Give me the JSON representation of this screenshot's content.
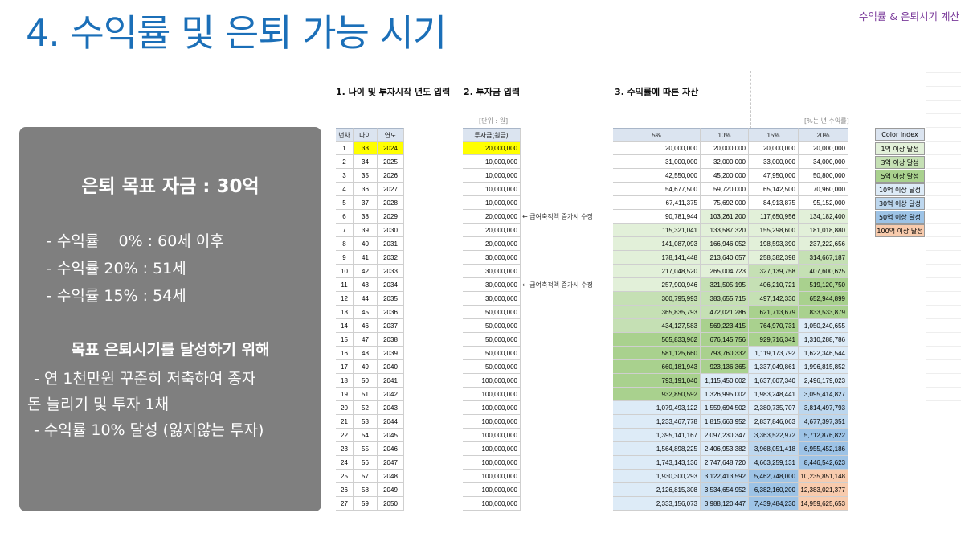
{
  "header_tag": "수익률 & 은퇴시기 계산",
  "page_title": "4. 수익률 및 은퇴 가능 시기",
  "summary": {
    "goal": "은퇴 목표 자금 : 30억",
    "line1": "- 수익률    0% : 60세 이후",
    "line2": "- 수익률 20% : 51세",
    "line3": "- 수익률 15% : 54세",
    "subheading": "목표 은퇴시기를 달성하기 위해",
    "line4": "- 연 1천만원 꾸준히 저축하여 종자",
    "line5": "돈 늘리기 및 투자 1채",
    "line6": "- 수익률 10% 달성 (잃지않는 투자)"
  },
  "sheet": {
    "section1": "1. 나이 및 투자시작 년도 입력",
    "section2": "2. 투자금 입력",
    "section3": "3. 수익률에 따른 자산",
    "unit_note": "[단위 : 원]",
    "rate_note": "[%는 년 수익률]",
    "headers": {
      "idx": "년차",
      "age": "나이",
      "year": "연도",
      "invest": "투자금(원금)",
      "r5": "5%",
      "r10": "10%",
      "r15": "15%",
      "r20": "20%"
    },
    "memo1": "← 급여축적액 증가시 수정",
    "memo2": "← 급여축적액 증가시 수정",
    "rows": [
      {
        "idx": "1",
        "age": "33",
        "year": "2024",
        "invest": "20,000,000",
        "r5": "20,000,000",
        "r10": "20,000,000",
        "r15": "20,000,000",
        "r20": "20,000,000"
      },
      {
        "idx": "2",
        "age": "34",
        "year": "2025",
        "invest": "10,000,000",
        "r5": "31,000,000",
        "r10": "32,000,000",
        "r15": "33,000,000",
        "r20": "34,000,000"
      },
      {
        "idx": "3",
        "age": "35",
        "year": "2026",
        "invest": "10,000,000",
        "r5": "42,550,000",
        "r10": "45,200,000",
        "r15": "47,950,000",
        "r20": "50,800,000"
      },
      {
        "idx": "4",
        "age": "36",
        "year": "2027",
        "invest": "10,000,000",
        "r5": "54,677,500",
        "r10": "59,720,000",
        "r15": "65,142,500",
        "r20": "70,960,000"
      },
      {
        "idx": "5",
        "age": "37",
        "year": "2028",
        "invest": "10,000,000",
        "r5": "67,411,375",
        "r10": "75,692,000",
        "r15": "84,913,875",
        "r20": "95,152,000"
      },
      {
        "idx": "6",
        "age": "38",
        "year": "2029",
        "invest": "20,000,000",
        "r5": "90,781,944",
        "r10": "103,261,200",
        "r15": "117,650,956",
        "r20": "134,182,400"
      },
      {
        "idx": "7",
        "age": "39",
        "year": "2030",
        "invest": "20,000,000",
        "r5": "115,321,041",
        "r10": "133,587,320",
        "r15": "155,298,600",
        "r20": "181,018,880"
      },
      {
        "idx": "8",
        "age": "40",
        "year": "2031",
        "invest": "20,000,000",
        "r5": "141,087,093",
        "r10": "166,946,052",
        "r15": "198,593,390",
        "r20": "237,222,656"
      },
      {
        "idx": "9",
        "age": "41",
        "year": "2032",
        "invest": "30,000,000",
        "r5": "178,141,448",
        "r10": "213,640,657",
        "r15": "258,382,398",
        "r20": "314,667,187"
      },
      {
        "idx": "10",
        "age": "42",
        "year": "2033",
        "invest": "30,000,000",
        "r5": "217,048,520",
        "r10": "265,004,723",
        "r15": "327,139,758",
        "r20": "407,600,625"
      },
      {
        "idx": "11",
        "age": "43",
        "year": "2034",
        "invest": "30,000,000",
        "r5": "257,900,946",
        "r10": "321,505,195",
        "r15": "406,210,721",
        "r20": "519,120,750"
      },
      {
        "idx": "12",
        "age": "44",
        "year": "2035",
        "invest": "30,000,000",
        "r5": "300,795,993",
        "r10": "383,655,715",
        "r15": "497,142,330",
        "r20": "652,944,899"
      },
      {
        "idx": "13",
        "age": "45",
        "year": "2036",
        "invest": "50,000,000",
        "r5": "365,835,793",
        "r10": "472,021,286",
        "r15": "621,713,679",
        "r20": "833,533,879"
      },
      {
        "idx": "14",
        "age": "46",
        "year": "2037",
        "invest": "50,000,000",
        "r5": "434,127,583",
        "r10": "569,223,415",
        "r15": "764,970,731",
        "r20": "1,050,240,655"
      },
      {
        "idx": "15",
        "age": "47",
        "year": "2038",
        "invest": "50,000,000",
        "r5": "505,833,962",
        "r10": "676,145,756",
        "r15": "929,716,341",
        "r20": "1,310,288,786"
      },
      {
        "idx": "16",
        "age": "48",
        "year": "2039",
        "invest": "50,000,000",
        "r5": "581,125,660",
        "r10": "793,760,332",
        "r15": "1,119,173,792",
        "r20": "1,622,346,544"
      },
      {
        "idx": "17",
        "age": "49",
        "year": "2040",
        "invest": "50,000,000",
        "r5": "660,181,943",
        "r10": "923,136,365",
        "r15": "1,337,049,861",
        "r20": "1,996,815,852"
      },
      {
        "idx": "18",
        "age": "50",
        "year": "2041",
        "invest": "100,000,000",
        "r5": "793,191,040",
        "r10": "1,115,450,002",
        "r15": "1,637,607,340",
        "r20": "2,496,179,023"
      },
      {
        "idx": "19",
        "age": "51",
        "year": "2042",
        "invest": "100,000,000",
        "r5": "932,850,592",
        "r10": "1,326,995,002",
        "r15": "1,983,248,441",
        "r20": "3,095,414,827"
      },
      {
        "idx": "20",
        "age": "52",
        "year": "2043",
        "invest": "100,000,000",
        "r5": "1,079,493,122",
        "r10": "1,559,694,502",
        "r15": "2,380,735,707",
        "r20": "3,814,497,793"
      },
      {
        "idx": "21",
        "age": "53",
        "year": "2044",
        "invest": "100,000,000",
        "r5": "1,233,467,778",
        "r10": "1,815,663,952",
        "r15": "2,837,846,063",
        "r20": "4,677,397,351"
      },
      {
        "idx": "22",
        "age": "54",
        "year": "2045",
        "invest": "100,000,000",
        "r5": "1,395,141,167",
        "r10": "2,097,230,347",
        "r15": "3,363,522,972",
        "r20": "5,712,876,822"
      },
      {
        "idx": "23",
        "age": "55",
        "year": "2046",
        "invest": "100,000,000",
        "r5": "1,564,898,225",
        "r10": "2,406,953,382",
        "r15": "3,968,051,418",
        "r20": "6,955,452,186"
      },
      {
        "idx": "24",
        "age": "56",
        "year": "2047",
        "invest": "100,000,000",
        "r5": "1,743,143,136",
        "r10": "2,747,648,720",
        "r15": "4,663,259,131",
        "r20": "8,446,542,623"
      },
      {
        "idx": "25",
        "age": "57",
        "year": "2048",
        "invest": "100,000,000",
        "r5": "1,930,300,293",
        "r10": "3,122,413,592",
        "r15": "5,462,748,000",
        "r20": "10,235,851,148"
      },
      {
        "idx": "26",
        "age": "58",
        "year": "2049",
        "invest": "100,000,000",
        "r5": "2,126,815,308",
        "r10": "3,534,654,952",
        "r15": "6,382,160,200",
        "r20": "12,383,021,377"
      },
      {
        "idx": "27",
        "age": "59",
        "year": "2050",
        "invest": "100,000,000",
        "r5": "2,333,156,073",
        "r10": "3,988,120,447",
        "r15": "7,439,484,230",
        "r20": "14,959,625,653"
      }
    ]
  },
  "color_index": {
    "header": "Color Index",
    "items": [
      {
        "label": "1억 이상 달성",
        "color": "#e2f0d9"
      },
      {
        "label": "3억 이상 달성",
        "color": "#c5e0b4"
      },
      {
        "label": "5억 이상 달성",
        "color": "#a9d18e"
      },
      {
        "label": "10억 이상 달성",
        "color": "#ddebf7"
      },
      {
        "label": "30억 이상 달성",
        "color": "#bdd7ee"
      },
      {
        "label": "50억 이상 달성",
        "color": "#9dc3e6"
      },
      {
        "label": "100억 이상 달성",
        "color": "#f8cbad"
      }
    ]
  },
  "colors": {
    "title": "#1b6fb8",
    "highlight": "#ffff00",
    "summary_bg": "#7f7f7f"
  }
}
